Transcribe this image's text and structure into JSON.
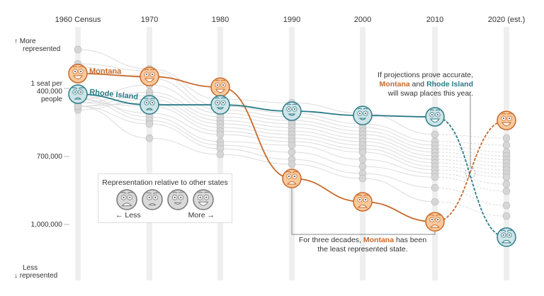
{
  "chart_data": {
    "type": "line",
    "x": [
      "1960 Census",
      "1970",
      "1980",
      "1990",
      "2000",
      "2010",
      "2020 (est.)"
    ],
    "ylabel_top": "More represented",
    "ylabel_bottom": "Less represented",
    "yticks": [
      {
        "value": 400000,
        "label": "1 seat per 400,000 people"
      },
      {
        "value": 700000,
        "label": "700,000"
      },
      {
        "value": 1000000,
        "label": "1,000,000"
      }
    ],
    "ylim": [
      175000,
      1210000
    ],
    "y_inverted": true,
    "y_unit": "people per House seat",
    "projected_from_index": 5,
    "series": [
      {
        "name": "Montana",
        "color": "#c8692a",
        "fill": "#f8c99b",
        "values": [
          334000,
          347000,
          394000,
          797000,
          900000,
          988000,
          541000
        ],
        "moods": [
          4,
          4,
          4,
          1,
          1,
          1,
          4
        ]
      },
      {
        "name": "Rhode Island",
        "color": "#2a7b88",
        "fill": "#cfe4e7",
        "values": [
          425000,
          472000,
          472000,
          500000,
          519000,
          525000,
          1056000
        ],
        "moods": [
          2,
          2,
          3,
          3,
          3,
          4,
          1
        ]
      }
    ],
    "other_states": [
      [
        228000,
        313000,
        447000,
        463000,
        509000,
        603000,
        619000
      ],
      [
        291000,
        322000,
        478000,
        509000,
        556000,
        634000,
        650000
      ],
      [
        306000,
        353000,
        494000,
        525000,
        572000,
        650000,
        681000
      ],
      [
        447000,
        384000,
        509000,
        541000,
        588000,
        666000,
        697000
      ],
      [
        463000,
        416000,
        525000,
        556000,
        603000,
        681000,
        713000
      ],
      [
        478000,
        431000,
        541000,
        572000,
        619000,
        697000,
        728000
      ],
      [
        494000,
        447000,
        556000,
        588000,
        634000,
        713000,
        744000
      ],
      [
        478000,
        463000,
        572000,
        603000,
        650000,
        728000,
        759000
      ],
      [
        463000,
        478000,
        588000,
        619000,
        666000,
        744000,
        775000
      ],
      [
        447000,
        509000,
        603000,
        634000,
        681000,
        759000,
        791000
      ],
      [
        431000,
        525000,
        634000,
        650000,
        713000,
        775000,
        822000
      ],
      [
        447000,
        541000,
        650000,
        681000,
        744000,
        791000,
        853000
      ],
      [
        478000,
        556000,
        666000,
        713000,
        775000,
        838000,
        916000
      ],
      [
        478000,
        619000,
        691000,
        734000,
        797000,
        900000,
        963000
      ]
    ]
  },
  "annotations": {
    "swap": {
      "line1": "If projections prove accurate,",
      "montana": "Montana",
      "and": " and ",
      "rhode_island": "Rhode Island",
      "line3": "will swap places this year."
    },
    "least": {
      "prefix": "For three decades, ",
      "montana": "Montana",
      "suffix": " has been",
      "line2": "the least represented state."
    }
  },
  "legend": {
    "title": "Representation relative to other states",
    "less": "← Less",
    "more": "More →",
    "moods": [
      1,
      2,
      3,
      4
    ]
  },
  "axis": {
    "more_arrow": "↑",
    "more": "More",
    "more2": "represented",
    "less": "Less",
    "less_arrow": "↓",
    "less2": "represented",
    "tick400_1": "1 seat per",
    "tick400_2": "400,000",
    "tick400_3": "people"
  },
  "colors": {
    "grid_bar": "#efefef",
    "other_line": "#dcdcdc",
    "other_dot": "#d6d6d6",
    "other_dot_stroke": "#b8b8b8"
  }
}
